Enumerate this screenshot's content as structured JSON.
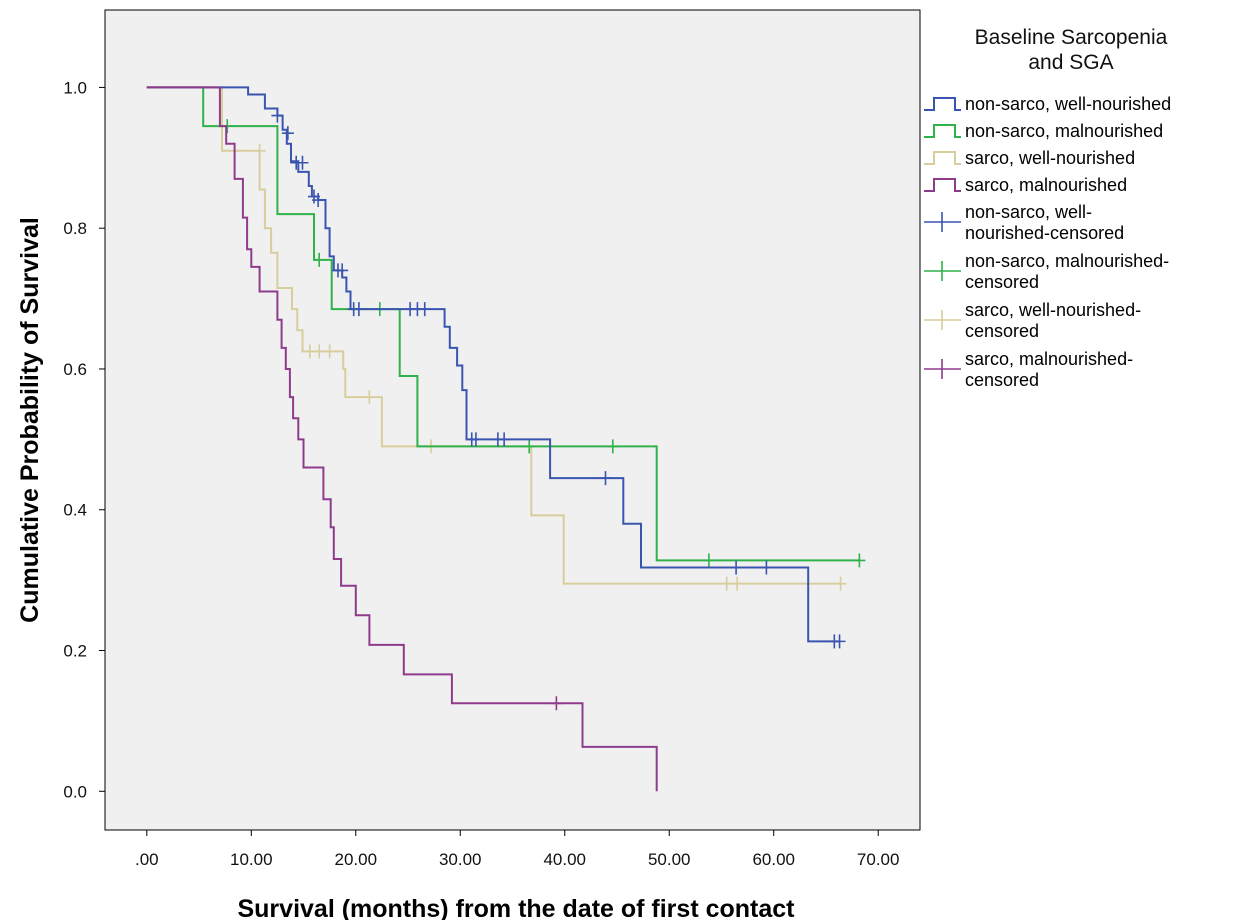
{
  "chart_data": {
    "type": "line",
    "subtype": "kaplan-meier step",
    "title": "",
    "xlabel": "Survival (months) from the date of first contact",
    "ylabel": "Cumulative Probability of Survival",
    "xlim": [
      -4,
      74
    ],
    "ylim": [
      -0.055,
      1.11
    ],
    "x_ticks": [
      0,
      10,
      20,
      30,
      40,
      50,
      60,
      70
    ],
    "x_tick_labels": [
      ".00",
      "10.00",
      "20.00",
      "30.00",
      "40.00",
      "50.00",
      "60.00",
      "70.00"
    ],
    "y_ticks": [
      0.0,
      0.2,
      0.4,
      0.6,
      0.8,
      1.0
    ],
    "y_tick_labels": [
      "0.0",
      "0.2",
      "0.4",
      "0.6",
      "0.8",
      "1.0"
    ],
    "grid": false,
    "background_color": "#f0f0f0",
    "legend": {
      "title_lines": [
        "Baseline Sarcopenia",
        "and SGA"
      ],
      "placement": "right",
      "entries": [
        {
          "label_lines": [
            "non-sarco, well-nourished"
          ],
          "color": "#3a55b0",
          "symbol": "step"
        },
        {
          "label_lines": [
            "non-sarco, malnourished"
          ],
          "color": "#2fb24a",
          "symbol": "step"
        },
        {
          "label_lines": [
            "sarco, well-nourished"
          ],
          "color": "#d8cd9c",
          "symbol": "step"
        },
        {
          "label_lines": [
            "sarco, malnourished"
          ],
          "color": "#8e3b8c",
          "symbol": "step"
        },
        {
          "label_lines": [
            "non-sarco, well-",
            "nourished-censored"
          ],
          "color": "#3a55b0",
          "symbol": "plus"
        },
        {
          "label_lines": [
            "non-sarco, malnourished-",
            "censored"
          ],
          "color": "#2fb24a",
          "symbol": "plus"
        },
        {
          "label_lines": [
            "sarco, well-nourished-",
            "censored"
          ],
          "color": "#d8cd9c",
          "symbol": "plus"
        },
        {
          "label_lines": [
            "sarco, malnourished-",
            "censored"
          ],
          "color": "#8e3b8c",
          "symbol": "plus"
        }
      ]
    },
    "series": [
      {
        "name": "non-sarco, well-nourished",
        "color": "#3a55b0",
        "steps": [
          [
            0,
            1.0
          ],
          [
            9.7,
            0.99
          ],
          [
            11.3,
            0.97
          ],
          [
            12.5,
            0.96
          ],
          [
            13.0,
            0.94
          ],
          [
            13.4,
            0.92
          ],
          [
            13.8,
            0.895
          ],
          [
            14.5,
            0.88
          ],
          [
            15.5,
            0.86
          ],
          [
            15.8,
            0.845
          ],
          [
            16.4,
            0.84
          ],
          [
            17.1,
            0.8
          ],
          [
            17.5,
            0.76
          ],
          [
            17.9,
            0.74
          ],
          [
            18.7,
            0.73
          ],
          [
            19.1,
            0.71
          ],
          [
            19.5,
            0.685
          ],
          [
            28.5,
            0.66
          ],
          [
            29.0,
            0.63
          ],
          [
            29.7,
            0.605
          ],
          [
            30.2,
            0.57
          ],
          [
            30.6,
            0.5
          ],
          [
            38.6,
            0.445
          ],
          [
            45.6,
            0.38
          ],
          [
            47.3,
            0.318
          ],
          [
            63.3,
            0.213
          ]
        ],
        "end_x": 66.3,
        "censored": [
          [
            12.5,
            0.96
          ],
          [
            13.5,
            0.935
          ],
          [
            14.3,
            0.893
          ],
          [
            14.9,
            0.893
          ],
          [
            16.0,
            0.845
          ],
          [
            16.4,
            0.84
          ],
          [
            18.3,
            0.74
          ],
          [
            18.7,
            0.74
          ],
          [
            19.8,
            0.685
          ],
          [
            20.3,
            0.685
          ],
          [
            25.2,
            0.685
          ],
          [
            25.9,
            0.685
          ],
          [
            26.6,
            0.685
          ],
          [
            31.1,
            0.5
          ],
          [
            31.5,
            0.5
          ],
          [
            33.6,
            0.5
          ],
          [
            34.2,
            0.5
          ],
          [
            43.9,
            0.445
          ],
          [
            56.4,
            0.318
          ],
          [
            59.3,
            0.318
          ],
          [
            65.8,
            0.213
          ],
          [
            66.3,
            0.213
          ]
        ]
      },
      {
        "name": "non-sarco, malnourished",
        "color": "#2fb24a",
        "steps": [
          [
            0,
            1.0
          ],
          [
            5.4,
            0.945
          ],
          [
            12.5,
            0.82
          ],
          [
            16.0,
            0.755
          ],
          [
            17.7,
            0.685
          ],
          [
            24.2,
            0.59
          ],
          [
            25.9,
            0.49
          ],
          [
            48.8,
            0.328
          ]
        ],
        "end_x": 68.2,
        "censored": [
          [
            7.7,
            0.945
          ],
          [
            16.5,
            0.755
          ],
          [
            22.3,
            0.685
          ],
          [
            36.6,
            0.49
          ],
          [
            44.6,
            0.49
          ],
          [
            53.8,
            0.328
          ],
          [
            68.2,
            0.328
          ]
        ]
      },
      {
        "name": "sarco, well-nourished",
        "color": "#d8cd9c",
        "steps": [
          [
            0,
            1.0
          ],
          [
            7.2,
            0.91
          ],
          [
            10.8,
            0.855
          ],
          [
            11.3,
            0.8
          ],
          [
            11.9,
            0.765
          ],
          [
            12.5,
            0.715
          ],
          [
            13.9,
            0.685
          ],
          [
            14.4,
            0.655
          ],
          [
            14.9,
            0.625
          ],
          [
            18.8,
            0.6
          ],
          [
            19.0,
            0.56
          ],
          [
            22.5,
            0.49
          ],
          [
            36.8,
            0.392
          ],
          [
            39.9,
            0.295
          ]
        ],
        "end_x": 66.4,
        "censored": [
          [
            10.8,
            0.91
          ],
          [
            15.6,
            0.625
          ],
          [
            16.5,
            0.625
          ],
          [
            17.5,
            0.625
          ],
          [
            21.3,
            0.56
          ],
          [
            27.2,
            0.49
          ],
          [
            55.5,
            0.295
          ],
          [
            56.5,
            0.295
          ],
          [
            66.4,
            0.295
          ]
        ]
      },
      {
        "name": "sarco, malnourished",
        "color": "#8e3b8c",
        "steps": [
          [
            0,
            1.0
          ],
          [
            7.0,
            0.945
          ],
          [
            7.6,
            0.92
          ],
          [
            8.4,
            0.87
          ],
          [
            9.2,
            0.815
          ],
          [
            9.6,
            0.77
          ],
          [
            10.0,
            0.745
          ],
          [
            10.8,
            0.71
          ],
          [
            12.5,
            0.67
          ],
          [
            12.9,
            0.63
          ],
          [
            13.3,
            0.6
          ],
          [
            13.7,
            0.56
          ],
          [
            14.0,
            0.53
          ],
          [
            14.5,
            0.5
          ],
          [
            15.0,
            0.46
          ],
          [
            16.9,
            0.415
          ],
          [
            17.6,
            0.375
          ],
          [
            17.9,
            0.33
          ],
          [
            18.6,
            0.292
          ],
          [
            20.0,
            0.25
          ],
          [
            21.3,
            0.208
          ],
          [
            24.6,
            0.166
          ],
          [
            29.2,
            0.125
          ],
          [
            41.7,
            0.063
          ],
          [
            48.8,
            0.0
          ]
        ],
        "end_x": 48.8,
        "censored": [
          [
            39.2,
            0.125
          ]
        ]
      }
    ]
  }
}
